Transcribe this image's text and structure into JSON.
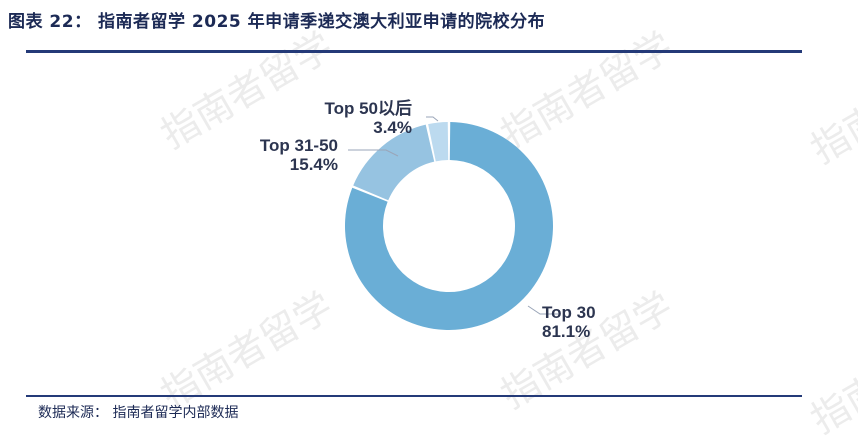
{
  "header": {
    "title": "图表 22：  指南者留学 2025 年申请季递交澳大利亚申请的院校分布"
  },
  "footer": {
    "source": "数据来源：  指南者留学内部数据"
  },
  "watermark": {
    "text": "指南者留学"
  },
  "colors": {
    "rule": "#243a78",
    "text": "#1c2a55"
  },
  "chart_data": {
    "type": "pie",
    "donut": true,
    "title": "",
    "slices": [
      {
        "label": "Top 30",
        "value": 81.1,
        "display": "81.1%",
        "color": "#6aaed6"
      },
      {
        "label": "Top 31-50",
        "value": 15.4,
        "display": "15.4%",
        "color": "#96c3e1"
      },
      {
        "label": "Top 50以后",
        "value": 3.4,
        "display": "3.4%",
        "color": "#bcdaef"
      }
    ]
  }
}
